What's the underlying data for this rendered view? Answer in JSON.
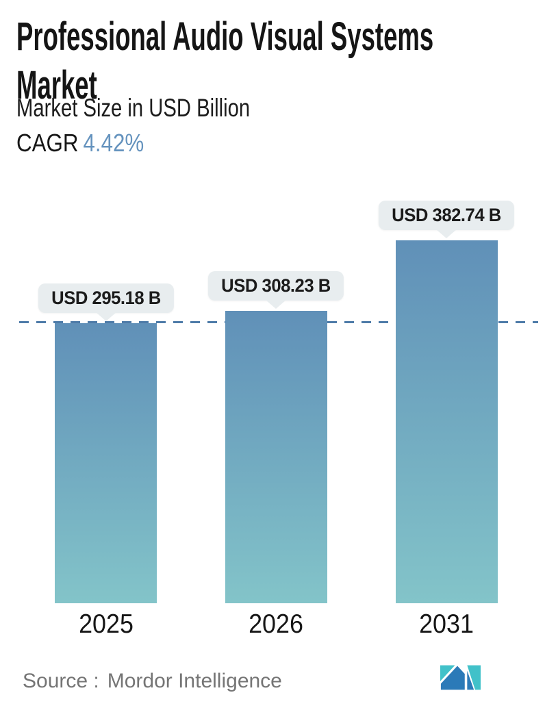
{
  "header": {
    "title_line1": "Professional Audio Visual Systems",
    "title_line2": "Market",
    "subtitle": "Market Size in USD Billion",
    "cagr_label": "CAGR",
    "cagr_value": "4.42%"
  },
  "chart_data": {
    "type": "bar",
    "title": "Professional Audio Visual Systems Market",
    "unit": "USD Billion",
    "cagr_percent": "4.42%",
    "categories": [
      "2025",
      "2026",
      "2031"
    ],
    "values": [
      295.18,
      308.23,
      382.74
    ],
    "value_labels": [
      "USD 295.18 B",
      "USD 308.23 B",
      "USD 382.74 B"
    ],
    "dashed_reference_value": 295.18,
    "ylim": [
      0,
      420
    ],
    "grid": "off",
    "legend": "none",
    "colors": {
      "bar_top": "#6090b8",
      "bar_bottom": "#83c4c9",
      "dashed_line": "#4e7ba8",
      "tooltip_bg": "#e8edef",
      "accent": "#6593be"
    }
  },
  "footer": {
    "source_label": "Source :",
    "source_value": "Mordor Intelligence",
    "logo": {
      "name": "mordor-intelligence-logo",
      "blue": "#2b7ab8",
      "teal": "#41c1c9"
    }
  }
}
